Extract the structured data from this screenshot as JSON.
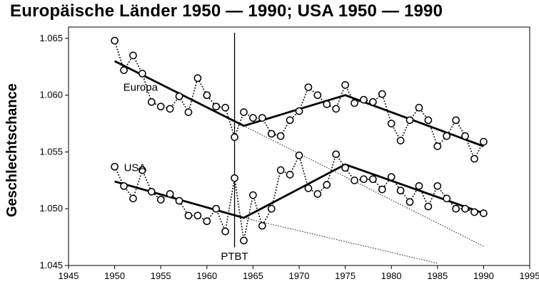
{
  "title": "Europäische Länder 1950 — 1990; USA 1950 — 1990",
  "chart_data": {
    "type": "line",
    "title": "Europäische Länder 1950 — 1990; USA 1950 — 1990",
    "xlabel": "",
    "ylabel": "Geschlechtschance",
    "xlim": [
      1945,
      1995
    ],
    "ylim": [
      1.045,
      1.066
    ],
    "x_ticks": [
      "1945",
      "1950",
      "1955",
      "1960",
      "1965",
      "1970",
      "1975",
      "1980",
      "1985",
      "1990",
      "1995"
    ],
    "y_ticks": [
      "1.045",
      "1.050",
      "1.055",
      "1.060",
      "1.065"
    ],
    "grid": false,
    "annotations": [
      {
        "text": "Europa",
        "x": 1952.8,
        "y": 1.0604
      },
      {
        "text": "USA",
        "x": 1952.2,
        "y": 1.0533
      },
      {
        "text": "PTBT",
        "x": 1963,
        "y": 1.0455
      }
    ],
    "vertical_line": {
      "label": "PTBT",
      "x": 1963
    },
    "series": [
      {
        "name": "Europa",
        "x": [
          1950,
          1951,
          1952,
          1953,
          1954,
          1955,
          1956,
          1957,
          1958,
          1959,
          1960,
          1961,
          1962,
          1963,
          1964,
          1965,
          1966,
          1967,
          1968,
          1969,
          1970,
          1971,
          1972,
          1973,
          1974,
          1975,
          1976,
          1977,
          1978,
          1979,
          1980,
          1981,
          1982,
          1983,
          1984,
          1985,
          1986,
          1987,
          1988,
          1989,
          1990
        ],
        "values": [
          1.0648,
          1.0622,
          1.0635,
          1.0619,
          1.0594,
          1.059,
          1.0588,
          1.0599,
          1.0585,
          1.0615,
          1.06,
          1.059,
          1.0589,
          1.0563,
          1.0585,
          1.058,
          1.058,
          1.0566,
          1.0564,
          1.0578,
          1.0586,
          1.0607,
          1.06,
          1.0592,
          1.0588,
          1.0609,
          1.0593,
          1.0596,
          1.0594,
          1.0601,
          1.0575,
          1.056,
          1.0578,
          1.0589,
          1.0578,
          1.0555,
          1.0564,
          1.0578,
          1.0564,
          1.0544,
          1.0559
        ],
        "trend": [
          [
            1950,
            1.063
          ],
          [
            1964,
            1.0573
          ],
          [
            1975,
            1.06
          ],
          [
            1990,
            1.0555
          ]
        ],
        "extrapolation": [
          [
            1964,
            1.0573
          ],
          [
            1990,
            1.0467
          ]
        ]
      },
      {
        "name": "USA",
        "x": [
          1950,
          1951,
          1952,
          1953,
          1954,
          1955,
          1956,
          1957,
          1958,
          1959,
          1960,
          1961,
          1962,
          1963,
          1964,
          1965,
          1966,
          1967,
          1968,
          1969,
          1970,
          1971,
          1972,
          1973,
          1974,
          1975,
          1976,
          1977,
          1978,
          1979,
          1980,
          1981,
          1982,
          1983,
          1984,
          1985,
          1986,
          1987,
          1988,
          1989,
          1990
        ],
        "values": [
          1.0537,
          1.052,
          1.0509,
          1.0534,
          1.0515,
          1.0508,
          1.0513,
          1.0507,
          1.0494,
          1.0494,
          1.0489,
          1.05,
          1.048,
          1.0527,
          1.0472,
          1.0512,
          1.0485,
          1.05,
          1.0534,
          1.053,
          1.0547,
          1.0518,
          1.0513,
          1.0521,
          1.0548,
          1.0536,
          1.0525,
          1.0526,
          1.0526,
          1.0517,
          1.0528,
          1.0516,
          1.0506,
          1.052,
          1.0502,
          1.052,
          1.0509,
          1.05,
          1.05,
          1.0497,
          1.0496
        ],
        "trend": [
          [
            1950,
            1.0524
          ],
          [
            1964,
            1.0492
          ],
          [
            1975,
            1.0539
          ],
          [
            1990,
            1.0496
          ]
        ],
        "extrapolation": [
          [
            1964,
            1.0492
          ],
          [
            1985,
            1.0452
          ]
        ]
      }
    ]
  }
}
